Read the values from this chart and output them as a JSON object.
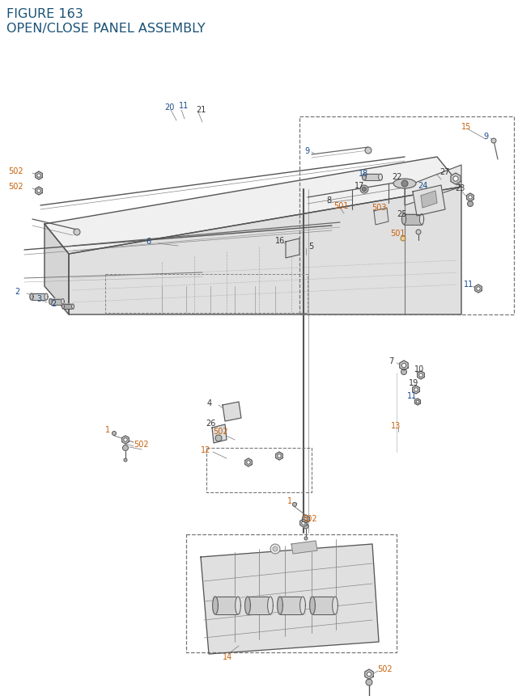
{
  "title_line1": "FIGURE 163",
  "title_line2": "OPEN/CLOSE PANEL ASSEMBLY",
  "title_color": "#1a5276",
  "title_fontsize": 11.5,
  "bg_color": "#ffffff",
  "oc": "#c8600a",
  "bc": "#1a4a8a",
  "bk": "#333333",
  "fig_width": 6.4,
  "fig_height": 8.62,
  "dpi": 100
}
